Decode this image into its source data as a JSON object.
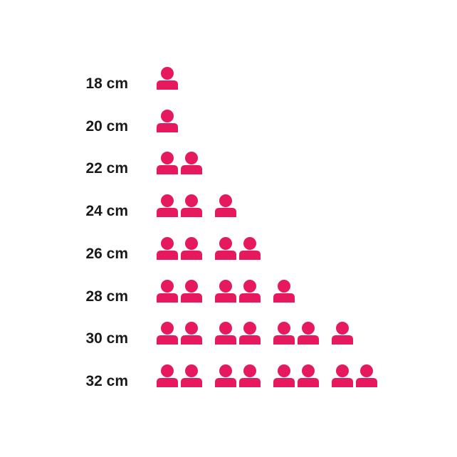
{
  "chart_data": {
    "type": "pictogram",
    "categories": [
      "18 cm",
      "20 cm",
      "22 cm",
      "24 cm",
      "26 cm",
      "28 cm",
      "30 cm",
      "32 cm"
    ],
    "values": [
      1,
      1,
      2,
      3,
      4,
      5,
      7,
      8
    ],
    "icon": "person-icon",
    "color": "#e6195f"
  }
}
